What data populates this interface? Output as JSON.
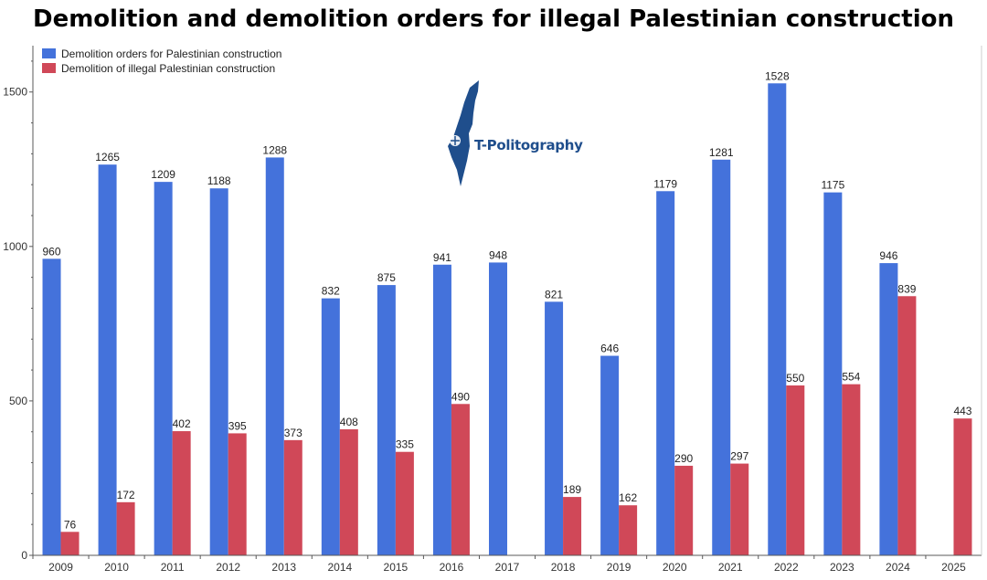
{
  "title": "Demolition and demolition orders for illegal Palestinian construction",
  "logo": {
    "text": "T-Politography",
    "icon": "israel-map-icon"
  },
  "colors": {
    "orders": "#4472db",
    "demolitions": "#d04858",
    "axis": "#595959",
    "grid": "#e6e6e6"
  },
  "chart_data": {
    "type": "bar",
    "title": "Demolition and demolition orders for illegal Palestinian construction",
    "xlabel": "",
    "ylabel": "",
    "ylim": [
      0,
      1650
    ],
    "yticks": [
      0,
      500,
      1000,
      1500
    ],
    "legend_position": "top-left",
    "grid": false,
    "categories": [
      "2009",
      "2010",
      "2011",
      "2012",
      "2013",
      "2014",
      "2015",
      "2016",
      "2017",
      "2018",
      "2019",
      "2020",
      "2021",
      "2022",
      "2023",
      "2024",
      "2025"
    ],
    "series": [
      {
        "name": "Demolition orders for Palestinian construction",
        "color": "#4472db",
        "values": [
          960,
          1265,
          1209,
          1188,
          1288,
          832,
          875,
          941,
          948,
          821,
          646,
          1179,
          1281,
          1528,
          1175,
          946,
          null
        ]
      },
      {
        "name": "Demolition of illegal Palestinian construction",
        "color": "#d04858",
        "values": [
          76,
          172,
          402,
          395,
          373,
          408,
          335,
          490,
          null,
          189,
          162,
          290,
          297,
          550,
          554,
          839,
          443
        ]
      }
    ]
  }
}
